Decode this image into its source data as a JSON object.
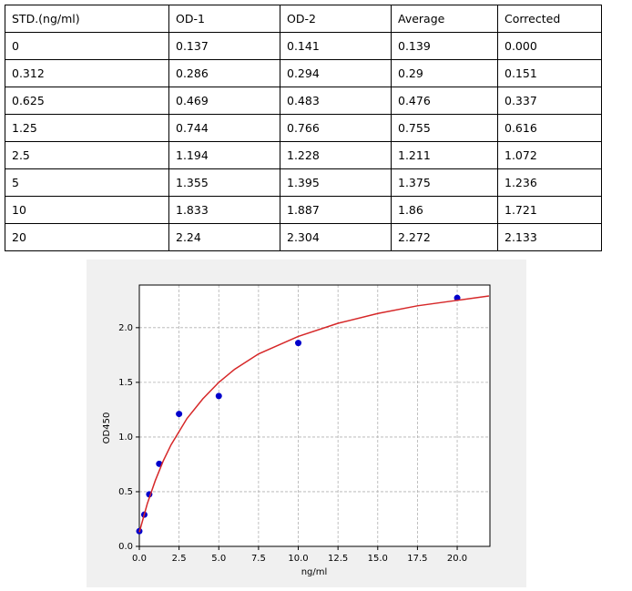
{
  "table": {
    "header": [
      "STD.(ng/ml)",
      "OD-1",
      "OD-2",
      "Average",
      "Corrected"
    ],
    "rows": [
      [
        "0",
        "0.137",
        "0.141",
        "0.139",
        "0.000"
      ],
      [
        "0.312",
        "0.286",
        "0.294",
        "0.29",
        "0.151"
      ],
      [
        "0.625",
        "0.469",
        "0.483",
        "0.476",
        "0.337"
      ],
      [
        "1.25",
        "0.744",
        "0.766",
        "0.755",
        "0.616"
      ],
      [
        "2.5",
        "1.194",
        "1.228",
        "1.211",
        "1.072"
      ],
      [
        "5",
        "1.355",
        "1.395",
        "1.375",
        "1.236"
      ],
      [
        "10",
        "1.833",
        "1.887",
        "1.86",
        "1.721"
      ],
      [
        "20",
        "2.24",
        "2.304",
        "2.272",
        "2.133"
      ]
    ]
  },
  "chart_data": {
    "type": "scatter",
    "x_label": "ng/ml",
    "y_label": "OD450",
    "xlim": [
      0,
      22.06
    ],
    "ylim": [
      0,
      2.39
    ],
    "xticks": [
      {
        "value": 0,
        "label": "0.0"
      },
      {
        "value": 2.5,
        "label": "2.5"
      },
      {
        "value": 5,
        "label": "5.0"
      },
      {
        "value": 7.5,
        "label": "7.5"
      },
      {
        "value": 10,
        "label": "10.0"
      },
      {
        "value": 12.5,
        "label": "12.5"
      },
      {
        "value": 15,
        "label": "15.0"
      },
      {
        "value": 17.5,
        "label": "17.5"
      },
      {
        "value": 20,
        "label": "20.0"
      }
    ],
    "yticks": [
      {
        "value": 0,
        "label": "0.0"
      },
      {
        "value": 0.5,
        "label": "0.5"
      },
      {
        "value": 1,
        "label": "1.0"
      },
      {
        "value": 1.5,
        "label": "1.5"
      },
      {
        "value": 2,
        "label": "2.0"
      }
    ],
    "grid": true,
    "series": [
      {
        "type": "scatter",
        "color": "#0000cc",
        "x": [
          0,
          0.312,
          0.625,
          1.25,
          2.5,
          5,
          10,
          20
        ],
        "values": [
          0.139,
          0.29,
          0.476,
          0.755,
          1.211,
          1.375,
          1.86,
          2.272
        ]
      },
      {
        "type": "line",
        "color": "#d62728",
        "x": [
          0,
          0.5,
          1,
          1.5,
          2,
          3,
          4,
          5,
          6,
          7.5,
          10,
          12.5,
          15,
          17.5,
          20,
          22
        ],
        "values": [
          0.13,
          0.39,
          0.6,
          0.78,
          0.93,
          1.17,
          1.35,
          1.5,
          1.62,
          1.76,
          1.92,
          2.04,
          2.13,
          2.2,
          2.25,
          2.29
        ]
      }
    ]
  }
}
